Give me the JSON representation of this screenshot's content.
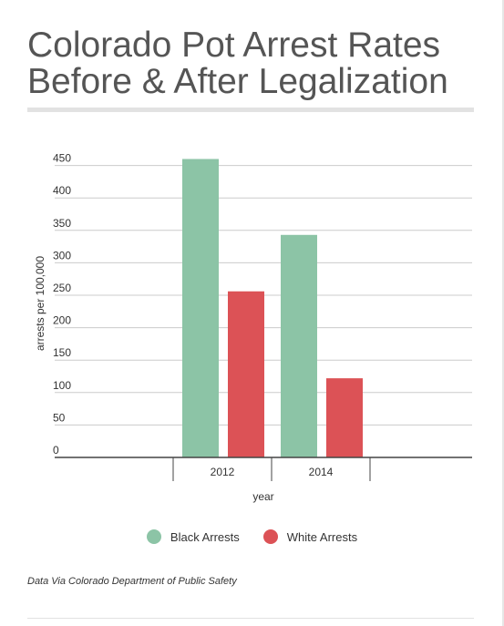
{
  "title_lines": [
    "Colorado Pot Arrest Rates",
    "Before & After Legalization"
  ],
  "source": "Data Via Colorado Department of Public Safety",
  "colors": {
    "black_arrests": "#8cc4a6",
    "white_arrests": "#dc5256",
    "gridline": "#cccccc",
    "axis": "#444444"
  },
  "chart_data": {
    "type": "bar",
    "title": "Colorado Pot Arrest Rates Before & After Legalization",
    "xlabel": "year",
    "ylabel": "arrests per 100,000",
    "categories": [
      "2012",
      "2014"
    ],
    "series": [
      {
        "name": "Black Arrests",
        "values": [
          460,
          343
        ]
      },
      {
        "name": "White Arrests",
        "values": [
          256,
          122
        ]
      }
    ],
    "yticks": [
      0,
      50,
      100,
      150,
      200,
      250,
      300,
      350,
      400,
      450
    ],
    "ylim": [
      0,
      450
    ],
    "grid": true,
    "legend": "bottom"
  }
}
